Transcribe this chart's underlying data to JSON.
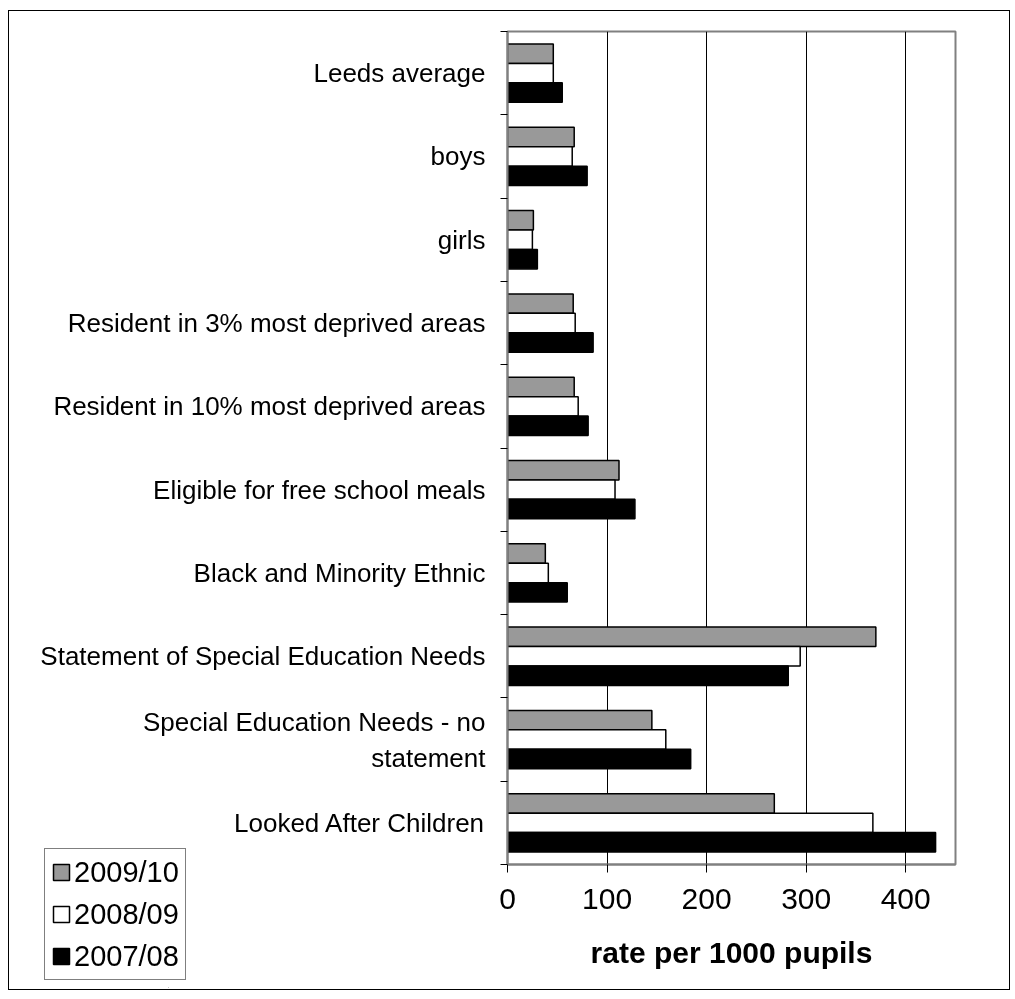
{
  "chart_data": {
    "type": "bar",
    "orientation": "horizontal",
    "categories": [
      "Leeds average",
      "boys",
      "girls",
      "Resident in 3% most deprived areas",
      "Resident in 10% most deprived areas",
      "Eligible for free school meals",
      "Black and Minority Ethnic",
      "Statement of Special Education Needs",
      "Special Education Needs - no statement",
      "Looked After Children"
    ],
    "series": [
      {
        "name": "2009/10",
        "color": "#999999",
        "values": [
          46,
          67,
          26,
          66,
          67,
          112,
          38,
          370,
          145,
          268
        ]
      },
      {
        "name": "2008/09",
        "color": "#ffffff",
        "values": [
          46,
          65,
          25,
          68,
          71,
          108,
          41,
          294,
          159,
          367
        ]
      },
      {
        "name": "2007/08",
        "color": "#000000",
        "values": [
          55,
          80,
          30,
          86,
          81,
          128,
          60,
          282,
          184,
          430
        ]
      }
    ],
    "xlabel": "rate per 1000 pupils",
    "xlim": [
      0,
      450
    ],
    "xticks": [
      0,
      100,
      200,
      300,
      400
    ],
    "grid": "x",
    "legend": "bottom left"
  }
}
